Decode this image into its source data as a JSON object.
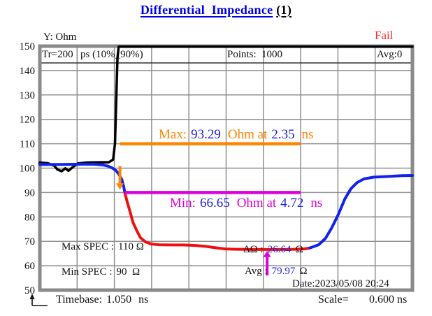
{
  "title": {
    "main": "Differential  Impedance",
    "index": "(1)"
  },
  "status_label": "Fail",
  "y_axis_title": "Y: Ohm",
  "header": {
    "tr_label": "Tr=200",
    "tr_detail": "ps (10%_90%)",
    "points_label": "Points:",
    "points_value": "1000",
    "avg_label": "Avg:0"
  },
  "annotations": {
    "max_label": "Max:",
    "max_value": "93.29",
    "max_mid": "Ohm at",
    "max_time": "2.35",
    "max_unit": "ns",
    "min_label": "Min:",
    "min_value": "66.65",
    "min_mid": "Ohm at",
    "min_time": "4.72",
    "min_unit": "ns",
    "max_spec_label": "Max SPEC :",
    "max_spec_value": "110 Ω",
    "min_spec_label": "Min SPEC :",
    "min_spec_value": "90  Ω",
    "delta_label": "ΔΩ :",
    "delta_value": "26.64",
    "delta_unit": "Ω",
    "avg_label": "Avg :",
    "avg_value": "79.97",
    "avg_unit": "Ω",
    "date": "Date:2023/05/08 20:24"
  },
  "footer": {
    "timebase_label": "Timebase:",
    "timebase_value": "1.050",
    "timebase_unit": "ns",
    "scale_label": "Scale=",
    "scale_value": "0.600 ns"
  },
  "colors": {
    "title_blue": "#0000ee",
    "value_blue": "#2222dd",
    "orange": "#ff8400",
    "magenta": "#dd00dd",
    "trace_blue": "#1122ee",
    "trace_red": "#ee1111",
    "trace_black": "#000000",
    "grid_gray": "#8f8f8f",
    "border_gray": "#8a8a8a",
    "fail_red": "#ff2a2a"
  },
  "chart_data": {
    "type": "line",
    "title": "Differential Impedance (1)",
    "y_unit": "Ohm",
    "x_unit": "ns",
    "ylim": [
      50,
      150
    ],
    "y_tick_step": 10,
    "x_start": 1.05,
    "x_per_division": 0.6,
    "x_divisions": 10,
    "grid": true,
    "measurements": {
      "result": "Fail",
      "tr": "200 ps (10%_90%)",
      "points": 1000,
      "averages": 0,
      "max_ohm": 93.29,
      "max_at_ns": 2.35,
      "min_ohm": 66.65,
      "min_at_ns": 4.72,
      "max_spec_ohm": 110,
      "min_spec_ohm": 90,
      "delta_ohm": 26.64,
      "avg_ohm": 79.97,
      "timebase_ns": 1.05,
      "scale_ns_per_div": 0.6,
      "date": "2023/05/08 20:24"
    },
    "series": [
      {
        "name": "incident-step-black",
        "color": "#000000",
        "width": 3.5,
        "points": [
          [
            1.05,
            102.3
          ],
          [
            1.18,
            102.0
          ],
          [
            1.28,
            101.0
          ],
          [
            1.33,
            99.5
          ],
          [
            1.4,
            98.7
          ],
          [
            1.46,
            99.9
          ],
          [
            1.51,
            98.9
          ],
          [
            1.58,
            100.4
          ],
          [
            1.66,
            101.9
          ],
          [
            1.8,
            102.3
          ],
          [
            2.0,
            102.4
          ],
          [
            2.16,
            102.4
          ],
          [
            2.23,
            103.5
          ],
          [
            2.26,
            110
          ],
          [
            2.28,
            128
          ],
          [
            2.3,
            145
          ],
          [
            2.32,
            149.8
          ],
          [
            7.05,
            149.8
          ]
        ]
      },
      {
        "name": "impedance-falling-blue",
        "color": "#1122ee",
        "width": 4,
        "points": [
          [
            1.05,
            101.5
          ],
          [
            1.4,
            101.5
          ],
          [
            1.7,
            101.6
          ],
          [
            1.93,
            101.6
          ],
          [
            2.07,
            101.3
          ],
          [
            2.15,
            100.8
          ],
          [
            2.22,
            100.0
          ],
          [
            2.28,
            98.9
          ],
          [
            2.32,
            97.6
          ],
          [
            2.37,
            95.3
          ],
          [
            2.4,
            92.6
          ],
          [
            2.42,
            89.8
          ]
        ]
      },
      {
        "name": "impedance-below-spec-red",
        "color": "#ee1111",
        "width": 4,
        "points": [
          [
            2.42,
            89.8
          ],
          [
            2.46,
            85.8
          ],
          [
            2.5,
            82.4
          ],
          [
            2.55,
            77.8
          ],
          [
            2.61,
            74.4
          ],
          [
            2.67,
            71.5
          ],
          [
            2.75,
            69.8
          ],
          [
            2.84,
            68.9
          ],
          [
            2.97,
            68.6
          ],
          [
            3.17,
            68.5
          ],
          [
            3.36,
            68.5
          ],
          [
            3.56,
            68.3
          ],
          [
            3.73,
            67.9
          ],
          [
            3.9,
            67.3
          ],
          [
            4.03,
            66.9
          ],
          [
            4.17,
            66.75
          ],
          [
            4.4,
            66.68
          ],
          [
            4.69,
            66.65
          ],
          [
            4.91,
            66.66
          ],
          [
            5.14,
            66.72
          ],
          [
            5.31,
            66.9
          ],
          [
            5.4,
            67.3
          ]
        ]
      },
      {
        "name": "impedance-rising-blue",
        "color": "#1122ee",
        "width": 4,
        "points": [
          [
            5.4,
            67.3
          ],
          [
            5.54,
            68.6
          ],
          [
            5.65,
            71.2
          ],
          [
            5.75,
            75.5
          ],
          [
            5.86,
            81.2
          ],
          [
            5.96,
            87.3
          ],
          [
            6.06,
            91.6
          ],
          [
            6.16,
            94.1
          ],
          [
            6.27,
            95.6
          ],
          [
            6.43,
            96.3
          ],
          [
            6.66,
            96.6
          ],
          [
            6.88,
            96.9
          ],
          [
            7.05,
            97.0
          ]
        ]
      }
    ],
    "markers": {
      "max_line": {
        "ohm": 110,
        "from_ns": 2.34,
        "to_ns": 5.25,
        "color": "#ff8400",
        "width": 4.5
      },
      "min_line": {
        "ohm": 90,
        "from_ns": 2.42,
        "to_ns": 5.25,
        "color": "#dd00dd",
        "width": 4.5
      },
      "max_arrow": {
        "ns": 2.34,
        "from_ohm": 100.8,
        "tip_ohm": 91.2,
        "color": "#ff8400"
      },
      "min_arrow": {
        "ns": 4.71,
        "from_ohm": 56.0,
        "tip_ohm": 66.1,
        "color": "#dd00dd"
      }
    }
  }
}
